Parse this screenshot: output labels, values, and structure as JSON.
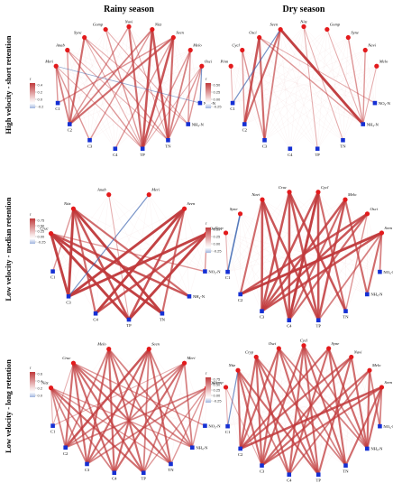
{
  "figure": {
    "column_titles": [
      "Rainy season",
      "Dry season"
    ],
    "row_titles": [
      "High velocity - short retention",
      "Low velocity - median retention",
      "Low velocity - long retention"
    ]
  },
  "colors": {
    "positive": "#c0393b",
    "negative": "#3a64b0",
    "genus_node": "#e31a1c",
    "env_node": "#1530d4"
  },
  "panels": [
    {
      "id": "rainy-high",
      "legend": {
        "title": "r",
        "ticks": [
          "0.4",
          "0.2",
          "0.0",
          "-0.2"
        ]
      },
      "genera": [
        "Meri",
        "Anab",
        "Sync",
        "Gomp",
        "Navi",
        "Nitz",
        "Seen",
        "Melo",
        "Osci"
      ],
      "env": [
        "C1",
        "C2",
        "C3",
        "C4",
        "TP",
        "TN",
        "NH₄-N",
        "NO₃-N"
      ],
      "edges": [
        [
          0,
          0,
          0.3
        ],
        [
          0,
          1,
          0.4
        ],
        [
          0,
          2,
          0.3
        ],
        [
          0,
          4,
          0.2
        ],
        [
          1,
          1,
          0.3
        ],
        [
          1,
          4,
          0.3
        ],
        [
          1,
          5,
          0.2
        ],
        [
          2,
          1,
          0.5
        ],
        [
          2,
          5,
          0.3
        ],
        [
          2,
          4,
          0.2
        ],
        [
          3,
          4,
          0.3
        ],
        [
          3,
          6,
          0.2
        ],
        [
          4,
          4,
          0.5
        ],
        [
          4,
          5,
          0.2
        ],
        [
          4,
          1,
          0.3
        ],
        [
          5,
          4,
          0.6
        ],
        [
          5,
          5,
          0.6
        ],
        [
          5,
          1,
          0.4
        ],
        [
          5,
          2,
          0.3
        ],
        [
          6,
          4,
          0.6
        ],
        [
          6,
          5,
          0.5
        ],
        [
          6,
          1,
          0.5
        ],
        [
          6,
          3,
          0.3
        ],
        [
          6,
          0,
          0.3
        ],
        [
          7,
          5,
          0.4
        ],
        [
          7,
          4,
          0.3
        ],
        [
          7,
          6,
          0.3
        ],
        [
          8,
          6,
          0.3
        ],
        [
          8,
          5,
          0.3
        ],
        [
          8,
          4,
          0.2
        ],
        [
          8,
          7,
          -0.2
        ],
        [
          2,
          6,
          0.2
        ],
        [
          0,
          7,
          -0.1
        ]
      ]
    },
    {
      "id": "dry-high",
      "legend": {
        "title": "r",
        "ticks": [
          "0.50",
          "0.25",
          "0.00",
          "-0.25"
        ]
      },
      "genera": [
        "Pinn",
        "Cycl",
        "Osci",
        "Seen",
        "Nitz",
        "Gomp",
        "Syne",
        "Navi",
        "Melo"
      ],
      "env": [
        "C1",
        "C2",
        "C3",
        "C4",
        "TP",
        "TN",
        "NH₄-N",
        "NO₃-N"
      ],
      "edges": [
        [
          2,
          1,
          0.6
        ],
        [
          2,
          2,
          0.5
        ],
        [
          3,
          1,
          0.5
        ],
        [
          3,
          6,
          0.7
        ],
        [
          3,
          2,
          0.4
        ],
        [
          1,
          1,
          0.3
        ],
        [
          1,
          2,
          0.3
        ],
        [
          2,
          6,
          0.3
        ],
        [
          4,
          5,
          0.2
        ],
        [
          5,
          6,
          0.2
        ],
        [
          6,
          6,
          0.3
        ],
        [
          7,
          6,
          0.3
        ],
        [
          8,
          6,
          0.2
        ],
        [
          0,
          0,
          0.2
        ],
        [
          3,
          0,
          -0.2
        ],
        [
          2,
          7,
          0.2
        ],
        [
          4,
          4,
          0.2
        ]
      ]
    },
    {
      "id": "rainy-median",
      "legend": {
        "title": "r",
        "ticks": [
          "0.75",
          "0.50",
          "0.25",
          "0.00",
          "-0.25"
        ]
      },
      "genera": [
        "Cruc",
        "Nitz",
        "Anab",
        "Meri",
        "Seen",
        "Osci"
      ],
      "env": [
        "C1",
        "C3",
        "C4",
        "TP",
        "TN",
        "NH₄-N",
        "NO₃-N"
      ],
      "edges": [
        [
          0,
          1,
          0.7
        ],
        [
          0,
          3,
          0.7
        ],
        [
          0,
          4,
          0.7
        ],
        [
          0,
          5,
          0.6
        ],
        [
          1,
          1,
          0.7
        ],
        [
          1,
          3,
          0.6
        ],
        [
          1,
          4,
          0.7
        ],
        [
          1,
          5,
          0.5
        ],
        [
          1,
          2,
          0.5
        ],
        [
          4,
          1,
          0.7
        ],
        [
          4,
          2,
          0.7
        ],
        [
          4,
          3,
          0.6
        ],
        [
          4,
          4,
          0.5
        ],
        [
          5,
          1,
          0.7
        ],
        [
          5,
          2,
          0.6
        ],
        [
          5,
          3,
          0.7
        ],
        [
          5,
          6,
          0.3
        ],
        [
          0,
          6,
          0.3
        ],
        [
          1,
          0,
          0.3
        ],
        [
          3,
          1,
          -0.2
        ],
        [
          2,
          3,
          0.2
        ]
      ]
    },
    {
      "id": "dry-median",
      "legend": {
        "title": "r",
        "ticks": [
          "0.50",
          "0.25",
          "0.00",
          "-0.25"
        ]
      },
      "genera": [
        "Cryp",
        "Syne",
        "Navi",
        "Cruc",
        "Cycl",
        "Melo",
        "Osci",
        "Seen"
      ],
      "env": [
        "C1",
        "C2",
        "C3",
        "C4",
        "TP",
        "TN",
        "NH₄-N",
        "NO₃-N"
      ],
      "edges": [
        [
          2,
          2,
          0.6
        ],
        [
          2,
          3,
          0.6
        ],
        [
          2,
          4,
          0.6
        ],
        [
          2,
          1,
          0.5
        ],
        [
          3,
          2,
          0.6
        ],
        [
          3,
          4,
          0.6
        ],
        [
          3,
          5,
          0.6
        ],
        [
          3,
          3,
          0.6
        ],
        [
          4,
          2,
          0.6
        ],
        [
          4,
          3,
          0.7
        ],
        [
          4,
          4,
          0.6
        ],
        [
          4,
          5,
          0.5
        ],
        [
          5,
          2,
          0.6
        ],
        [
          5,
          4,
          0.6
        ],
        [
          5,
          6,
          0.5
        ],
        [
          5,
          3,
          0.5
        ],
        [
          6,
          1,
          0.6
        ],
        [
          6,
          2,
          0.6
        ],
        [
          6,
          3,
          0.5
        ],
        [
          7,
          1,
          0.7
        ],
        [
          7,
          2,
          0.6
        ],
        [
          7,
          6,
          0.5
        ],
        [
          7,
          7,
          0.4
        ],
        [
          1,
          0,
          -0.3
        ],
        [
          0,
          0,
          0.2
        ],
        [
          6,
          5,
          0.3
        ],
        [
          7,
          4,
          0.4
        ]
      ]
    },
    {
      "id": "rainy-long",
      "legend": {
        "title": "r",
        "ticks": [
          "0.6",
          "0.4",
          "0.2",
          "0.0"
        ]
      },
      "genera": [
        "Nitz",
        "Cruc",
        "Melo",
        "Seen",
        "Meri",
        "Osci"
      ],
      "env": [
        "C1",
        "C2",
        "C3",
        "C4",
        "TP",
        "TN",
        "NH₄-N",
        "NO₃-N"
      ],
      "edges": [
        [
          0,
          1,
          0.4
        ],
        [
          0,
          2,
          0.4
        ],
        [
          0,
          3,
          0.4
        ],
        [
          0,
          4,
          0.5
        ],
        [
          0,
          5,
          0.3
        ],
        [
          0,
          6,
          0.3
        ],
        [
          1,
          1,
          0.5
        ],
        [
          1,
          2,
          0.5
        ],
        [
          1,
          3,
          0.5
        ],
        [
          1,
          4,
          0.5
        ],
        [
          1,
          5,
          0.5
        ],
        [
          1,
          6,
          0.4
        ],
        [
          1,
          7,
          0.3
        ],
        [
          2,
          1,
          0.4
        ],
        [
          2,
          2,
          0.5
        ],
        [
          2,
          3,
          0.5
        ],
        [
          2,
          4,
          0.5
        ],
        [
          2,
          5,
          0.4
        ],
        [
          2,
          6,
          0.4
        ],
        [
          3,
          1,
          0.6
        ],
        [
          3,
          2,
          0.5
        ],
        [
          3,
          3,
          0.5
        ],
        [
          3,
          4,
          0.4
        ],
        [
          3,
          5,
          0.5
        ],
        [
          3,
          6,
          0.4
        ],
        [
          4,
          1,
          0.4
        ],
        [
          4,
          2,
          0.4
        ],
        [
          4,
          3,
          0.5
        ],
        [
          4,
          4,
          0.4
        ],
        [
          4,
          6,
          0.4
        ],
        [
          5,
          1,
          0.4
        ],
        [
          5,
          2,
          0.4
        ],
        [
          5,
          4,
          0.3
        ],
        [
          5,
          5,
          0.3
        ],
        [
          5,
          6,
          0.3
        ],
        [
          0,
          0,
          0.2
        ],
        [
          1,
          0,
          0.2
        ],
        [
          4,
          0,
          0.2
        ]
      ]
    },
    {
      "id": "dry-long",
      "legend": {
        "title": "r",
        "ticks": [
          "0.75",
          "0.50",
          "0.25",
          "0.00",
          "-0.25"
        ]
      },
      "genera": [
        "Gomp",
        "Nitz",
        "Cryp",
        "Osci",
        "Cycl",
        "Syne",
        "Navi",
        "Melo",
        "Seen"
      ],
      "env": [
        "C1",
        "C2",
        "C3",
        "C4",
        "TP",
        "TN",
        "NH₄-N",
        "NO₃-N"
      ],
      "edges": [
        [
          1,
          1,
          0.5
        ],
        [
          1,
          2,
          0.5
        ],
        [
          1,
          3,
          0.4
        ],
        [
          1,
          4,
          0.5
        ],
        [
          2,
          1,
          0.5
        ],
        [
          2,
          2,
          0.5
        ],
        [
          2,
          3,
          0.5
        ],
        [
          2,
          4,
          0.5
        ],
        [
          2,
          5,
          0.4
        ],
        [
          3,
          1,
          0.5
        ],
        [
          3,
          2,
          0.5
        ],
        [
          3,
          4,
          0.5
        ],
        [
          3,
          5,
          0.4
        ],
        [
          3,
          6,
          0.4
        ],
        [
          4,
          2,
          0.5
        ],
        [
          4,
          3,
          0.5
        ],
        [
          4,
          4,
          0.5
        ],
        [
          4,
          5,
          0.5
        ],
        [
          4,
          6,
          0.4
        ],
        [
          5,
          1,
          0.5
        ],
        [
          5,
          3,
          0.5
        ],
        [
          5,
          5,
          0.5
        ],
        [
          5,
          6,
          0.5
        ],
        [
          6,
          1,
          0.5
        ],
        [
          6,
          2,
          0.5
        ],
        [
          6,
          4,
          0.5
        ],
        [
          6,
          6,
          0.5
        ],
        [
          7,
          2,
          0.5
        ],
        [
          7,
          3,
          0.4
        ],
        [
          7,
          6,
          0.5
        ],
        [
          7,
          7,
          0.4
        ],
        [
          8,
          1,
          0.6
        ],
        [
          8,
          2,
          0.5
        ],
        [
          8,
          5,
          0.5
        ],
        [
          8,
          6,
          0.5
        ],
        [
          8,
          7,
          0.4
        ],
        [
          0,
          0,
          0.2
        ],
        [
          1,
          0,
          -0.2
        ],
        [
          0,
          2,
          0.2
        ]
      ]
    }
  ]
}
